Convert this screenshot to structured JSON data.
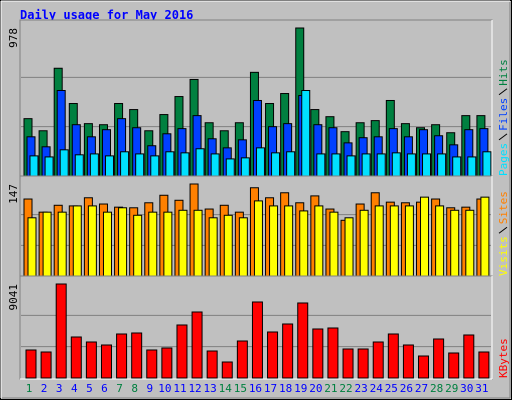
{
  "chart_data": [
    {
      "type": "bar",
      "title": "Daily usage for May 2016",
      "title_color": "#0000ff",
      "ylim": [
        0,
        978
      ],
      "yticks": [
        978
      ],
      "series": [
        {
          "name": "Hits",
          "color": "#008040",
          "values": [
            379,
            299,
            712,
            479,
            346,
            339,
            479,
            439,
            299,
            406,
            525,
            638,
            352,
            299,
            352,
            685,
            479,
            545,
            978,
            439,
            392,
            293,
            352,
            366,
            499,
            346,
            319,
            339,
            286,
            399,
            399
          ]
        },
        {
          "name": "Files",
          "color": "#0040ff",
          "values": [
            259,
            193,
            565,
            339,
            259,
            306,
            379,
            319,
            200,
            279,
            313,
            399,
            246,
            186,
            239,
            499,
            326,
            346,
            532,
            339,
            319,
            219,
            253,
            259,
            313,
            259,
            306,
            266,
            206,
            306,
            313
          ]
        },
        {
          "name": "Pages",
          "color": "#00e0ff",
          "values": [
            133,
            126,
            173,
            140,
            146,
            133,
            160,
            146,
            133,
            160,
            153,
            180,
            146,
            113,
            120,
            186,
            153,
            160,
            565,
            146,
            146,
            133,
            146,
            146,
            153,
            146,
            146,
            146,
            126,
            126,
            160
          ]
        }
      ]
    },
    {
      "type": "bar",
      "ylim": [
        0,
        147
      ],
      "yticks": [
        147
      ],
      "series": [
        {
          "name": "Sites",
          "color": "#ff8000",
          "values": [
            123,
            102,
            113,
            112,
            125,
            115,
            110,
            109,
            117,
            129,
            121,
            147,
            107,
            113,
            102,
            141,
            125,
            133,
            117,
            128,
            107,
            89,
            115,
            133,
            118,
            117,
            118,
            123,
            109,
            110,
            123
          ]
        },
        {
          "name": "Visits",
          "color": "#ffff00",
          "values": [
            93,
            102,
            102,
            112,
            112,
            102,
            109,
            97,
            102,
            102,
            105,
            105,
            93,
            97,
            93,
            120,
            112,
            112,
            104,
            112,
            102,
            93,
            105,
            112,
            112,
            112,
            126,
            112,
            105,
            105,
            126
          ]
        }
      ]
    },
    {
      "type": "bar",
      "ylim": [
        0,
        9041
      ],
      "yticks": [
        9041
      ],
      "categories": [
        "1",
        "2",
        "3",
        "4",
        "5",
        "6",
        "7",
        "8",
        "9",
        "10",
        "11",
        "12",
        "13",
        "14",
        "15",
        "16",
        "17",
        "18",
        "19",
        "20",
        "21",
        "22",
        "23",
        "24",
        "25",
        "26",
        "27",
        "28",
        "29",
        "30",
        "31"
      ],
      "category_colors": [
        "#008040",
        "#0000ff",
        "#0000ff",
        "#0000ff",
        "#0000ff",
        "#0000ff",
        "#008040",
        "#008040",
        "#0000ff",
        "#0000ff",
        "#0000ff",
        "#0000ff",
        "#0000ff",
        "#008040",
        "#008040",
        "#0000ff",
        "#0000ff",
        "#0000ff",
        "#0000ff",
        "#0000ff",
        "#008040",
        "#008040",
        "#0000ff",
        "#0000ff",
        "#0000ff",
        "#0000ff",
        "#0000ff",
        "#008040",
        "#008040",
        "#0000ff",
        "#0000ff"
      ],
      "series": [
        {
          "name": "KBytes",
          "color": "#ff0000",
          "values": [
            2694,
            2501,
            9041,
            3944,
            3463,
            3175,
            4233,
            4329,
            2694,
            2886,
            5099,
            6349,
            2597,
            1539,
            3559,
            7311,
            4425,
            5195,
            7215,
            4714,
            4810,
            2790,
            2790,
            3463,
            4233,
            3175,
            2116,
            3752,
            2405,
            4137,
            2501
          ]
        }
      ]
    }
  ]
}
